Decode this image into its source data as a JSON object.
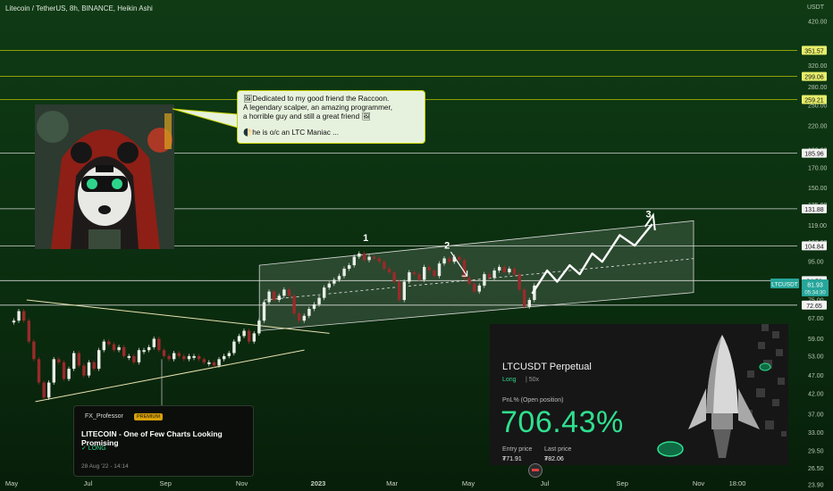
{
  "header": {
    "title": "Litecoin / TetherUS, 8h, BINANCE, Heikin Ashi",
    "currency": "USDT"
  },
  "chart_data": {
    "type": "line",
    "title": "Litecoin / TetherUS, 8h, BINANCE, Heikin Ashi",
    "y_scale": "log",
    "ylim": [
      23.0,
      480.0
    ],
    "y_ticks": [
      23.9,
      26.5,
      29.5,
      33.0,
      37.0,
      42.0,
      47.0,
      53.0,
      59.0,
      67.0,
      75.0,
      84.0,
      95.0,
      107.0,
      119.0,
      135.0,
      150.0,
      170.0,
      190.0,
      220.0,
      250.0,
      280.0,
      320.0,
      350.0,
      420.0
    ],
    "x_labels": [
      {
        "label": "May",
        "t": 0
      },
      {
        "label": "Jul",
        "t": 61
      },
      {
        "label": "Sep",
        "t": 123
      },
      {
        "label": "Nov",
        "t": 184
      },
      {
        "label": "2023",
        "t": 245
      },
      {
        "label": "Mar",
        "t": 304
      },
      {
        "label": "May",
        "t": 365
      },
      {
        "label": "Jul",
        "t": 426
      },
      {
        "label": "Sep",
        "t": 488
      },
      {
        "label": "Nov",
        "t": 549
      },
      {
        "label": "18:00",
        "t": 580
      }
    ],
    "price_levels": [
      {
        "label": "351.57",
        "value": 351.57,
        "color": "#c8d200"
      },
      {
        "label": "299.06",
        "value": 299.06,
        "color": "#c8d200"
      },
      {
        "label": "259.21",
        "value": 259.21,
        "color": "#c8d200"
      },
      {
        "label": "185.96",
        "value": 185.96,
        "color": "#e8e8e8"
      },
      {
        "label": "131.88",
        "value": 131.88,
        "color": "#e8e8e8"
      },
      {
        "label": "104.84",
        "value": 104.84,
        "color": "#e8e8e8"
      },
      {
        "label": "84.56",
        "value": 84.56,
        "color": "#e8e8e8"
      },
      {
        "label": "72.65",
        "value": 72.65,
        "color": "#e8e8e8"
      }
    ],
    "current_price": {
      "symbol": "LTCUSDT",
      "value": 81.93,
      "countdown": "05:34:30"
    },
    "series": [
      {
        "values": [
          [
            0,
            66
          ],
          [
            4,
            70
          ],
          [
            8,
            66
          ],
          [
            12,
            58
          ],
          [
            16,
            52
          ],
          [
            20,
            45
          ],
          [
            24,
            41
          ],
          [
            28,
            45
          ],
          [
            32,
            52
          ],
          [
            36,
            51
          ],
          [
            40,
            46
          ],
          [
            44,
            49
          ],
          [
            48,
            54
          ],
          [
            52,
            50
          ],
          [
            56,
            47
          ],
          [
            60,
            51
          ],
          [
            64,
            49
          ],
          [
            68,
            55
          ],
          [
            72,
            58
          ],
          [
            76,
            57
          ],
          [
            80,
            55
          ],
          [
            84,
            56
          ],
          [
            88,
            53
          ],
          [
            92,
            53
          ],
          [
            96,
            51
          ],
          [
            100,
            55
          ],
          [
            104,
            55
          ],
          [
            108,
            56
          ],
          [
            112,
            59
          ],
          [
            116,
            55
          ],
          [
            120,
            53
          ],
          [
            124,
            52
          ],
          [
            128,
            54
          ],
          [
            132,
            53
          ],
          [
            136,
            52
          ],
          [
            140,
            53
          ],
          [
            144,
            53
          ],
          [
            148,
            52
          ],
          [
            152,
            51
          ],
          [
            156,
            51
          ],
          [
            160,
            50
          ],
          [
            164,
            52
          ],
          [
            168,
            53
          ],
          [
            172,
            54
          ],
          [
            176,
            58
          ],
          [
            180,
            60
          ],
          [
            184,
            62
          ],
          [
            188,
            58
          ],
          [
            192,
            61
          ],
          [
            196,
            66
          ],
          [
            200,
            74
          ],
          [
            204,
            79
          ],
          [
            208,
            75
          ],
          [
            212,
            77
          ],
          [
            216,
            80
          ],
          [
            220,
            77
          ],
          [
            224,
            69
          ],
          [
            228,
            66
          ],
          [
            232,
            68
          ],
          [
            236,
            71
          ],
          [
            240,
            73
          ],
          [
            244,
            76
          ],
          [
            248,
            81
          ],
          [
            252,
            83
          ],
          [
            256,
            85
          ],
          [
            260,
            87
          ],
          [
            264,
            91
          ],
          [
            268,
            93
          ],
          [
            272,
            98
          ],
          [
            276,
            100
          ],
          [
            280,
            96
          ],
          [
            284,
            98
          ],
          [
            288,
            97
          ],
          [
            292,
            95
          ],
          [
            296,
            91
          ],
          [
            300,
            89
          ],
          [
            304,
            84
          ],
          [
            308,
            75
          ],
          [
            312,
            84
          ],
          [
            316,
            89
          ],
          [
            320,
            88
          ],
          [
            324,
            85
          ],
          [
            328,
            92
          ],
          [
            332,
            90
          ],
          [
            336,
            87
          ],
          [
            340,
            94
          ],
          [
            344,
            97
          ],
          [
            348,
            95
          ],
          [
            352,
            98
          ],
          [
            356,
            96
          ],
          [
            360,
            86
          ],
          [
            364,
            83
          ],
          [
            368,
            79
          ],
          [
            372,
            82
          ],
          [
            376,
            88
          ],
          [
            380,
            86
          ],
          [
            384,
            90
          ],
          [
            388,
            92
          ],
          [
            392,
            89
          ],
          [
            396,
            91
          ],
          [
            400,
            88
          ],
          [
            404,
            80
          ],
          [
            408,
            72
          ],
          [
            412,
            75
          ],
          [
            416,
            82
          ]
        ]
      }
    ],
    "channel_upper": [
      [
        198,
        93
      ],
      [
        534,
        120
      ]
    ],
    "channel_lower": [
      [
        198,
        62
      ],
      [
        534,
        77
      ]
    ],
    "channel_mid": [
      [
        202,
        75
      ],
      [
        534,
        95
      ]
    ],
    "channel_right_extent": 545,
    "trendline_upper": [
      [
        12,
        75
      ],
      [
        254,
        61
      ]
    ],
    "trendline_lower": [
      [
        19,
        40
      ],
      [
        234,
        55
      ]
    ],
    "wave_labels": [
      {
        "label": "1",
        "t": 283,
        "v": 108
      },
      {
        "label": "2",
        "t": 348,
        "v": 103
      },
      {
        "label": "3",
        "t": 509,
        "v": 125
      }
    ],
    "projection": [
      [
        416,
        78
      ],
      [
        428,
        90
      ],
      [
        436,
        84
      ],
      [
        446,
        93
      ],
      [
        454,
        88
      ],
      [
        464,
        100
      ],
      [
        472,
        95
      ],
      [
        486,
        112
      ],
      [
        498,
        105
      ],
      [
        512,
        120
      ]
    ],
    "pullback_arrow": [
      [
        351,
        101
      ],
      [
        364,
        87
      ]
    ]
  },
  "annotation": {
    "line1": "🖼Dedicated to my good friend the Raccoon.",
    "line2": "A legendary scalper, an amazing programmer,",
    "line3": "a horrible guy and still a great friend 🖼",
    "line4": "🌓he is o/c an LTC Maniac ..."
  },
  "idea_card": {
    "author": "FX_Professor",
    "badge": "PREMIUM",
    "title": "LITECOIN - One of Few Charts Looking Promising",
    "direction": "✓ LONG",
    "date": "28 Aug '22 - 14:14"
  },
  "pnl_card": {
    "title": "LTCUSDT Perpetual",
    "side": "Long",
    "leverage": "| 50x",
    "pnl_label": "PnL% (Open position)",
    "pnl_value": "706.43%",
    "entry_label": "Entry price",
    "entry_value": "₮71.91",
    "last_label": "Last price",
    "last_value": "₮82.06"
  },
  "colors": {
    "accent": "#2fe08f",
    "level_yellow": "#c8d200",
    "badge": "#26a69a"
  }
}
